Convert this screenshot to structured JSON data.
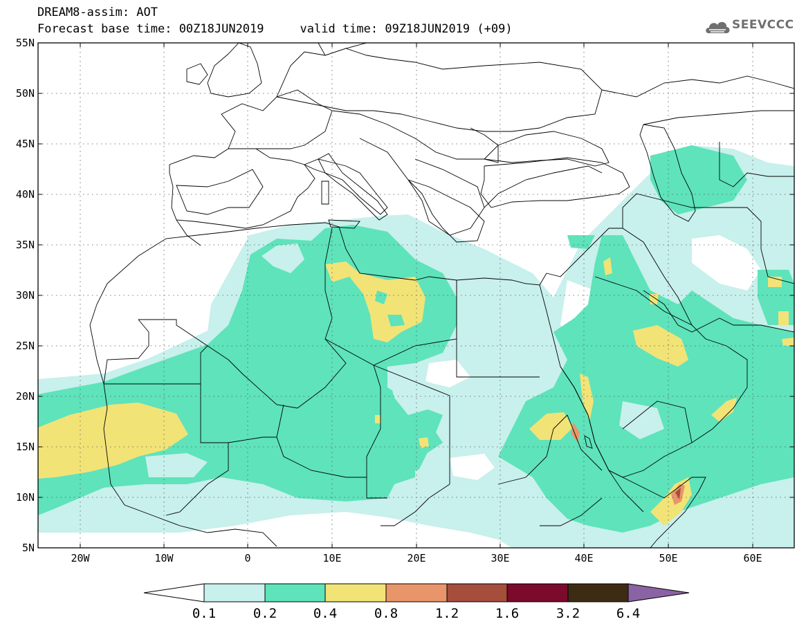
{
  "header": {
    "title": "DREAM8-assim: AOT",
    "base_time": "Forecast base time: 00Z18JUN2019",
    "valid_time": "valid time: 09Z18JUN2019 (+09)",
    "logo_text": "SEEVCCC",
    "logo_icon": "cloud-logo-icon"
  },
  "map": {
    "lon_range": [
      -25,
      65
    ],
    "lat_range": [
      5,
      55
    ],
    "lat_ticks": [
      "55N",
      "50N",
      "45N",
      "40N",
      "35N",
      "30N",
      "25N",
      "20N",
      "15N",
      "10N",
      "5N"
    ],
    "lon_ticks": [
      "20W",
      "10W",
      "0",
      "10E",
      "20E",
      "30E",
      "40E",
      "50E",
      "60E"
    ],
    "grid": "dotted"
  },
  "colorbar": {
    "levels": [
      "0.1",
      "0.2",
      "0.4",
      "0.8",
      "1.2",
      "1.6",
      "3.2",
      "6.4"
    ],
    "colors": [
      "#ffffff",
      "#c8f0ec",
      "#5ee3bb",
      "#f2e377",
      "#e9956a",
      "#a54e3c",
      "#7b0a2c",
      "#3e2b14",
      "#8a63a4"
    ]
  }
}
